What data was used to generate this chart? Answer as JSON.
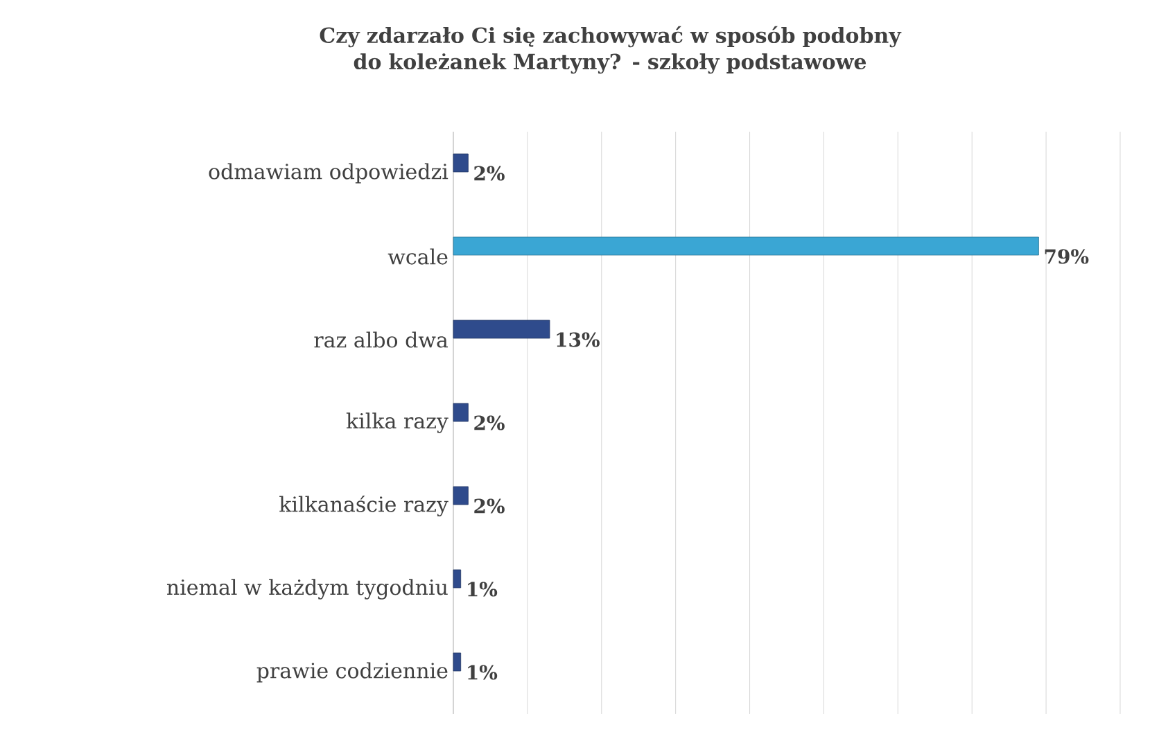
{
  "chart_data": {
    "type": "bar",
    "orientation": "horizontal",
    "title": "Czy zdarzało Ci się zachowywać w sposób podobny do koleżanek Martyny? - szkoły podstawowe",
    "categories": [
      "odmawiam odpowiedzi",
      "wcale",
      "raz albo dwa",
      "kilka razy",
      "kilkanaście razy",
      "niemal w każdym tygodniu",
      "prawie codziennie"
    ],
    "values": [
      2,
      79,
      13,
      2,
      2,
      1,
      1
    ],
    "value_labels": [
      "2%",
      "79%",
      "13%",
      "2%",
      "2%",
      "1%",
      "1%"
    ],
    "colors": [
      "#2f4b8c",
      "#3aa6d4",
      "#2f4b8c",
      "#2f4b8c",
      "#2f4b8c",
      "#2f4b8c",
      "#2f4b8c"
    ],
    "xlim": [
      0,
      90
    ],
    "xticks": [
      {
        "value": 0,
        "label": null
      },
      {
        "value": 10,
        "label": null
      },
      {
        "value": 20,
        "label": null
      },
      {
        "value": 30,
        "label": null
      },
      {
        "value": 40,
        "label": null
      },
      {
        "value": 50,
        "label": null
      },
      {
        "value": 60,
        "label": null
      },
      {
        "value": 70,
        "label": null
      },
      {
        "value": 80,
        "label": null
      },
      {
        "value": 90,
        "label": null
      }
    ],
    "grid": "x",
    "tick_labels": "y"
  }
}
